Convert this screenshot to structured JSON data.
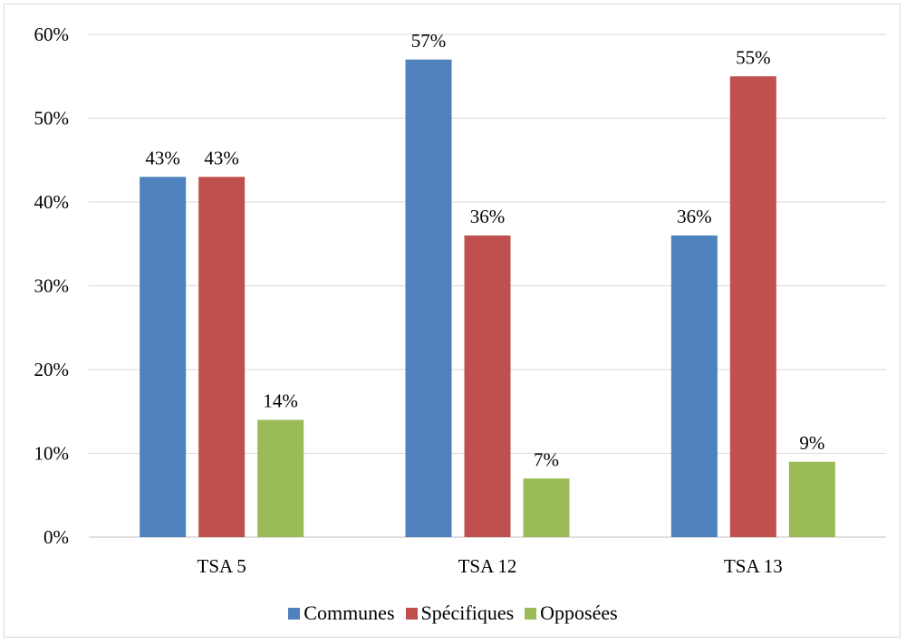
{
  "chart_data": {
    "type": "bar",
    "title": "",
    "xlabel": "",
    "ylabel": "",
    "categories": [
      "TSA 5",
      "TSA 12",
      "TSA 13"
    ],
    "series": [
      {
        "name": "Communes",
        "color": "#4f81bd",
        "values": [
          43,
          57,
          36
        ],
        "labels": [
          "43%",
          "57%",
          "36%"
        ]
      },
      {
        "name": "Spécifiques",
        "color": "#c0504d",
        "values": [
          43,
          36,
          55
        ],
        "labels": [
          "43%",
          "36%",
          "55%"
        ]
      },
      {
        "name": "Opposées",
        "color": "#9bbb59",
        "values": [
          14,
          7,
          9
        ],
        "labels": [
          "14%",
          "7%",
          "9%"
        ]
      }
    ],
    "ylim": [
      0,
      60
    ],
    "yticks": [
      "0%",
      "10%",
      "20%",
      "30%",
      "40%",
      "50%",
      "60%"
    ],
    "grid": true,
    "legend_position": "bottom"
  }
}
